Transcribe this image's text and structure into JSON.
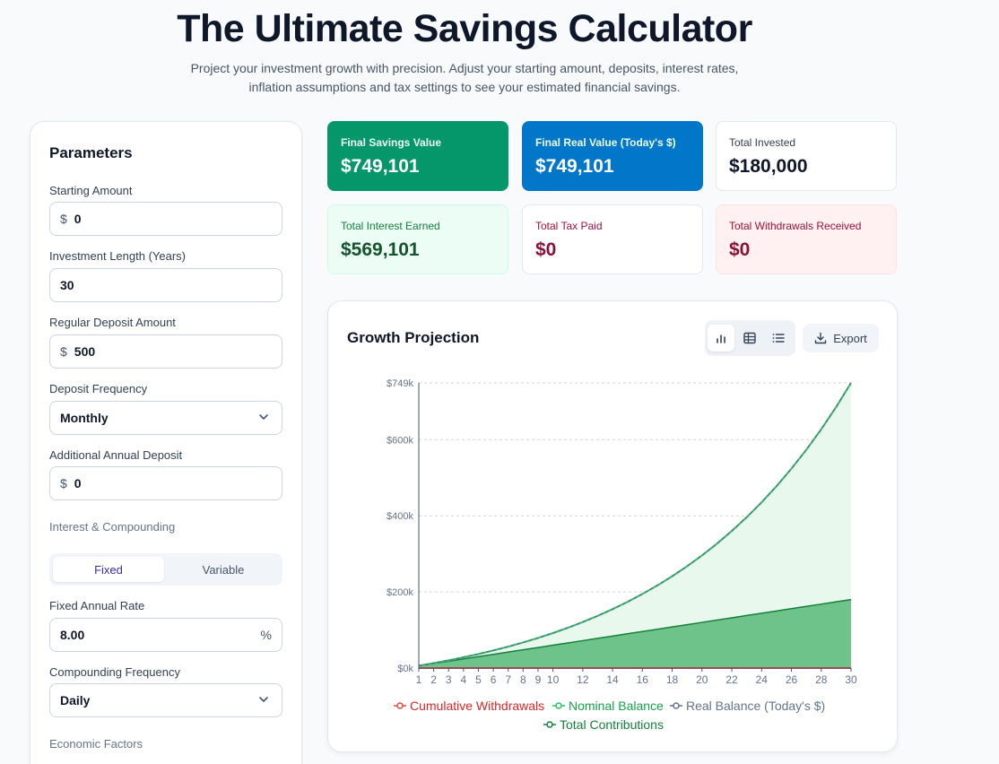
{
  "header": {
    "title": "The Ultimate Savings Calculator",
    "subtitle": "Project your investment growth with precision. Adjust your starting amount, deposits, interest rates, inflation assumptions and tax settings to see your estimated financial savings."
  },
  "params": {
    "title": "Parameters",
    "starting_amount": {
      "label": "Starting Amount",
      "prefix": "$",
      "value": "0"
    },
    "investment_length": {
      "label": "Investment Length (Years)",
      "value": "30"
    },
    "regular_deposit": {
      "label": "Regular Deposit Amount",
      "prefix": "$",
      "value": "500"
    },
    "deposit_frequency": {
      "label": "Deposit Frequency",
      "value": "Monthly"
    },
    "additional_deposit": {
      "label": "Additional Annual Deposit",
      "prefix": "$",
      "value": "0"
    },
    "interest_section": "Interest & Compounding",
    "rate_mode": {
      "options": [
        "Fixed",
        "Variable"
      ],
      "selected": "Fixed"
    },
    "fixed_rate": {
      "label": "Fixed Annual Rate",
      "value": "8.00",
      "suffix": "%"
    },
    "compounding": {
      "label": "Compounding Frequency",
      "value": "Daily"
    },
    "economic_section": "Economic Factors"
  },
  "stats": {
    "final_savings": {
      "label": "Final Savings Value",
      "value": "$749,101"
    },
    "final_real": {
      "label": "Final Real Value (Today's $)",
      "value": "$749,101"
    },
    "total_invested": {
      "label": "Total Invested",
      "value": "$180,000"
    },
    "total_interest": {
      "label": "Total Interest Earned",
      "value": "$569,101"
    },
    "total_tax": {
      "label": "Total Tax Paid",
      "value": "$0"
    },
    "total_withdrawals": {
      "label": "Total Withdrawals Received",
      "value": "$0"
    }
  },
  "chart_panel": {
    "title": "Growth Projection",
    "export_label": "Export",
    "views": [
      "bar-chart-icon",
      "table-icon",
      "list-icon"
    ]
  },
  "chart_data": {
    "type": "area",
    "x": [
      1,
      2,
      3,
      4,
      5,
      6,
      7,
      8,
      9,
      10,
      11,
      12,
      13,
      14,
      15,
      16,
      17,
      18,
      19,
      20,
      21,
      22,
      23,
      24,
      25,
      26,
      27,
      28,
      29,
      30
    ],
    "x_ticks": [
      1,
      2,
      3,
      4,
      5,
      6,
      7,
      8,
      9,
      10,
      12,
      14,
      16,
      18,
      20,
      22,
      24,
      26,
      28,
      30
    ],
    "y_ticks": [
      {
        "value": 0,
        "label": "$0k"
      },
      {
        "value": 200000,
        "label": "$200k"
      },
      {
        "value": 400000,
        "label": "$400k"
      },
      {
        "value": 600000,
        "label": "$600k"
      },
      {
        "value": 749101,
        "label": "$749k"
      }
    ],
    "ylim": [
      0,
      749101
    ],
    "grid": true,
    "legend_position": "bottom",
    "series": [
      {
        "name": "Cumulative Withdrawals",
        "color": "#ef4444",
        "values": [
          0,
          0,
          0,
          0,
          0,
          0,
          0,
          0,
          0,
          0,
          0,
          0,
          0,
          0,
          0,
          0,
          0,
          0,
          0,
          0,
          0,
          0,
          0,
          0,
          0,
          0,
          0,
          0,
          0,
          0
        ]
      },
      {
        "name": "Nominal Balance",
        "color": "#22c55e",
        "values": [
          6251,
          13021,
          20353,
          28295,
          36897,
          46212,
          56302,
          67229,
          79063,
          91880,
          105761,
          120794,
          137077,
          154711,
          173809,
          194493,
          216895,
          241157,
          267433,
          295891,
          326712,
          360092,
          396243,
          435397,
          477800,
          523724,
          573460,
          627326,
          685665,
          749101
        ]
      },
      {
        "name": "Real Balance (Today's $)",
        "color": "#64748b",
        "values": [
          6251,
          13021,
          20353,
          28295,
          36897,
          46212,
          56302,
          67229,
          79063,
          91880,
          105761,
          120794,
          137077,
          154711,
          173809,
          194493,
          216895,
          241157,
          267433,
          295891,
          326712,
          360092,
          396243,
          435397,
          477800,
          523724,
          573460,
          627326,
          685665,
          749101
        ]
      },
      {
        "name": "Total Contributions",
        "color": "#15803d",
        "values": [
          6000,
          12000,
          18000,
          24000,
          30000,
          36000,
          42000,
          48000,
          54000,
          60000,
          66000,
          72000,
          78000,
          84000,
          90000,
          96000,
          102000,
          108000,
          114000,
          120000,
          126000,
          132000,
          138000,
          144000,
          150000,
          156000,
          162000,
          168000,
          174000,
          180000
        ]
      }
    ]
  }
}
